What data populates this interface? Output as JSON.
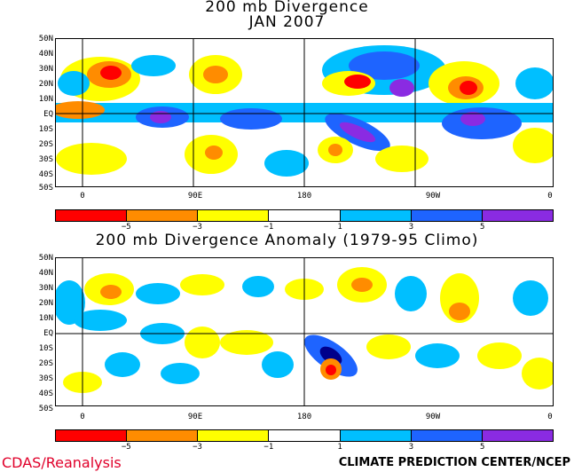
{
  "panel1": {
    "title_line1": "200 mb Divergence",
    "title_line2": "JAN 2007"
  },
  "panel2": {
    "title": "200 mb Divergence Anomaly (1979-95 Climo)"
  },
  "lat_labels": [
    "50N",
    "40N",
    "30N",
    "20N",
    "10N",
    "EQ",
    "10S",
    "20S",
    "30S",
    "40S",
    "50S"
  ],
  "lon_labels": [
    "0",
    "90E",
    "180",
    "90W",
    "0"
  ],
  "colorbar": {
    "colors": [
      "#ff0000",
      "#ff8c00",
      "#ffff00",
      "#ffffff",
      "#00bfff",
      "#1e64ff",
      "#8a2be2"
    ],
    "labels": [
      "−5",
      "−3",
      "−1",
      "1",
      "3",
      "5"
    ]
  },
  "footer": {
    "left": "CDAS/Reanalysis",
    "right": "CLIMATE PREDICTION CENTER/NCEP"
  }
}
